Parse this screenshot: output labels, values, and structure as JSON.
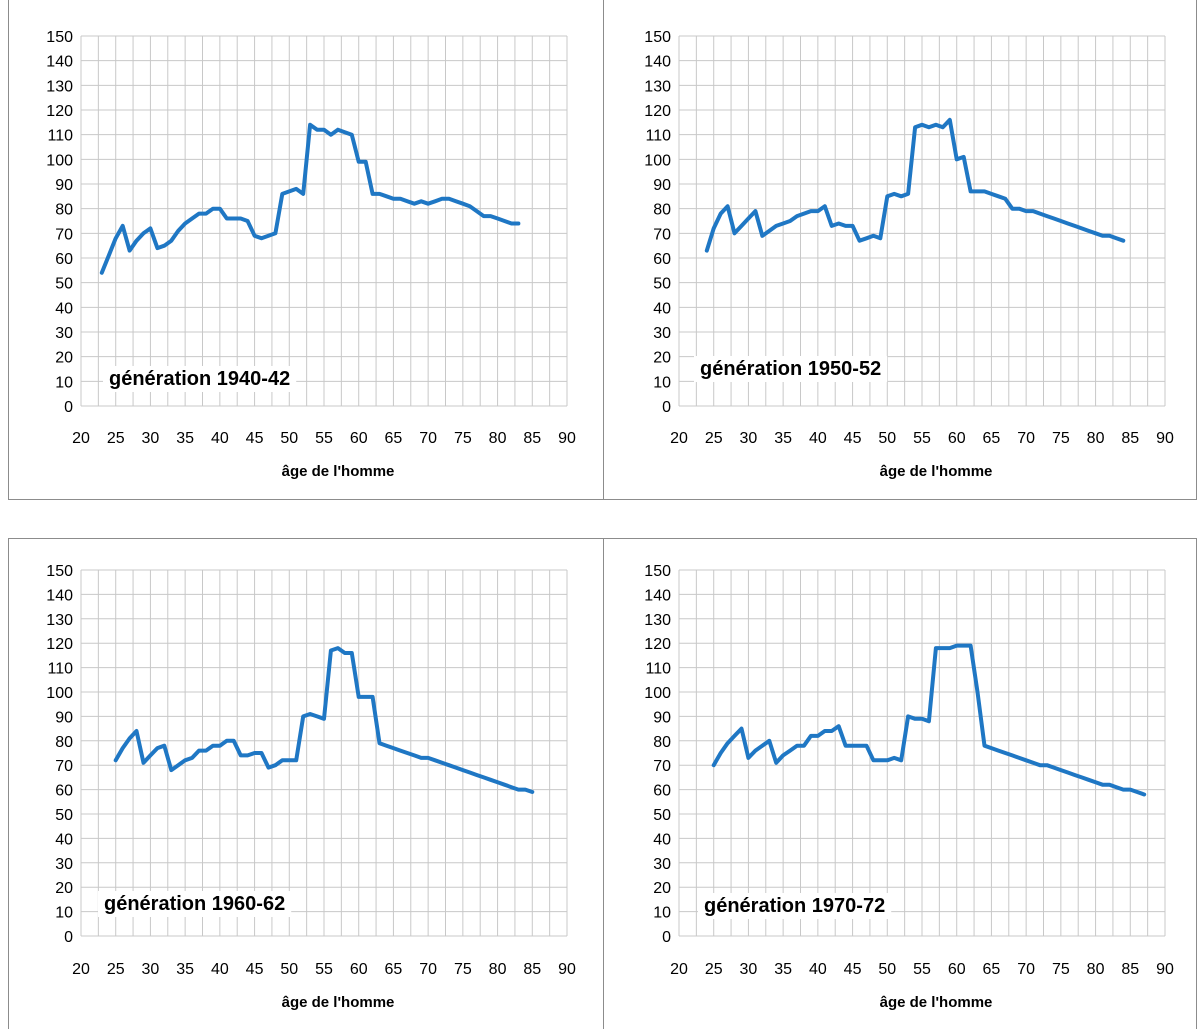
{
  "chart_data": [
    {
      "type": "line",
      "title": "",
      "annotation": "génération 1940-42",
      "xlabel": "âge de l'homme",
      "ylabel": "",
      "xlim": [
        20,
        90
      ],
      "ylim": [
        0,
        150
      ],
      "xticks": [
        "20",
        "25",
        "30",
        "35",
        "40",
        "45",
        "50",
        "55",
        "60",
        "65",
        "70",
        "75",
        "80",
        "85",
        "90"
      ],
      "yticks": [
        "0",
        "10",
        "20",
        "30",
        "40",
        "50",
        "60",
        "70",
        "80",
        "90",
        "100",
        "110",
        "120",
        "130",
        "140",
        "150"
      ],
      "grid": true,
      "color": "#1f77c4",
      "x": [
        23,
        24,
        25,
        26,
        27,
        28,
        29,
        30,
        31,
        32,
        33,
        34,
        35,
        36,
        37,
        38,
        39,
        40,
        41,
        42,
        43,
        44,
        45,
        46,
        47,
        48,
        49,
        50,
        51,
        52,
        53,
        54,
        55,
        56,
        57,
        58,
        59,
        60,
        61,
        62,
        63,
        64,
        65,
        66,
        67,
        68,
        69,
        70,
        71,
        72,
        73,
        74,
        75,
        76,
        77,
        78,
        79,
        80,
        81,
        82,
        83
      ],
      "y": [
        54,
        61,
        68,
        73,
        63,
        67,
        70,
        72,
        64,
        65,
        67,
        71,
        74,
        76,
        78,
        78,
        80,
        80,
        76,
        76,
        76,
        75,
        69,
        68,
        69,
        70,
        86,
        87,
        88,
        86,
        114,
        112,
        112,
        110,
        112,
        111,
        110,
        99,
        99,
        86,
        86,
        85,
        84,
        84,
        83,
        82,
        83,
        82,
        83,
        84,
        84,
        83,
        82,
        81,
        79,
        77,
        77,
        76,
        75,
        74,
        74
      ]
    },
    {
      "type": "line",
      "title": "",
      "annotation": "génération 1950-52",
      "xlabel": "âge de l'homme",
      "ylabel": "",
      "xlim": [
        20,
        90
      ],
      "ylim": [
        0,
        150
      ],
      "xticks": [
        "20",
        "25",
        "30",
        "35",
        "40",
        "45",
        "50",
        "55",
        "60",
        "65",
        "70",
        "75",
        "80",
        "85",
        "90"
      ],
      "yticks": [
        "0",
        "10",
        "20",
        "30",
        "40",
        "50",
        "60",
        "70",
        "80",
        "90",
        "100",
        "110",
        "120",
        "130",
        "140",
        "150"
      ],
      "grid": true,
      "color": "#1f77c4",
      "x": [
        24,
        25,
        26,
        27,
        28,
        29,
        30,
        31,
        32,
        33,
        34,
        35,
        36,
        37,
        38,
        39,
        40,
        41,
        42,
        43,
        44,
        45,
        46,
        47,
        48,
        49,
        50,
        51,
        52,
        53,
        54,
        55,
        56,
        57,
        58,
        59,
        60,
        61,
        62,
        63,
        64,
        65,
        66,
        67,
        68,
        69,
        70,
        71,
        72,
        73,
        74,
        75,
        76,
        77,
        78,
        79,
        80,
        81,
        82,
        83,
        84
      ],
      "y": [
        63,
        72,
        78,
        81,
        70,
        73,
        76,
        79,
        69,
        71,
        73,
        74,
        75,
        77,
        78,
        79,
        79,
        81,
        73,
        74,
        73,
        73,
        67,
        68,
        69,
        68,
        85,
        86,
        85,
        86,
        113,
        114,
        113,
        114,
        113,
        116,
        100,
        101,
        87,
        87,
        87,
        86,
        85,
        84,
        80,
        80,
        79,
        79,
        78,
        77,
        76,
        75,
        74,
        73,
        72,
        71,
        70,
        69,
        69,
        68,
        67
      ]
    },
    {
      "type": "line",
      "title": "",
      "annotation": "génération 1960-62",
      "xlabel": "âge de l'homme",
      "ylabel": "",
      "xlim": [
        20,
        90
      ],
      "ylim": [
        0,
        150
      ],
      "xticks": [
        "20",
        "25",
        "30",
        "35",
        "40",
        "45",
        "50",
        "55",
        "60",
        "65",
        "70",
        "75",
        "80",
        "85",
        "90"
      ],
      "yticks": [
        "0",
        "10",
        "20",
        "30",
        "40",
        "50",
        "60",
        "70",
        "80",
        "90",
        "100",
        "110",
        "120",
        "130",
        "140",
        "150"
      ],
      "grid": true,
      "color": "#1f77c4",
      "x": [
        25,
        26,
        27,
        28,
        29,
        30,
        31,
        32,
        33,
        34,
        35,
        36,
        37,
        38,
        39,
        40,
        41,
        42,
        43,
        44,
        45,
        46,
        47,
        48,
        49,
        50,
        51,
        52,
        53,
        54,
        55,
        56,
        57,
        58,
        59,
        60,
        61,
        62,
        63,
        64,
        65,
        66,
        67,
        68,
        69,
        70,
        71,
        72,
        73,
        74,
        75,
        76,
        77,
        78,
        79,
        80,
        81,
        82,
        83,
        84,
        85
      ],
      "y": [
        72,
        77,
        81,
        84,
        71,
        74,
        77,
        78,
        68,
        70,
        72,
        73,
        76,
        76,
        78,
        78,
        80,
        80,
        74,
        74,
        75,
        75,
        69,
        70,
        72,
        72,
        72,
        90,
        91,
        90,
        89,
        117,
        118,
        116,
        116,
        98,
        98,
        98,
        79,
        78,
        77,
        76,
        75,
        74,
        73,
        73,
        72,
        71,
        70,
        69,
        68,
        67,
        66,
        65,
        64,
        63,
        62,
        61,
        60,
        60,
        59
      ]
    },
    {
      "type": "line",
      "title": "",
      "annotation": "génération 1970-72",
      "xlabel": "âge de l'homme",
      "ylabel": "",
      "xlim": [
        20,
        90
      ],
      "ylim": [
        0,
        150
      ],
      "xticks": [
        "20",
        "25",
        "30",
        "35",
        "40",
        "45",
        "50",
        "55",
        "60",
        "65",
        "70",
        "75",
        "80",
        "85",
        "90"
      ],
      "yticks": [
        "0",
        "10",
        "20",
        "30",
        "40",
        "50",
        "60",
        "70",
        "80",
        "90",
        "100",
        "110",
        "120",
        "130",
        "140",
        "150"
      ],
      "grid": true,
      "color": "#1f77c4",
      "x": [
        25,
        26,
        27,
        28,
        29,
        30,
        31,
        32,
        33,
        34,
        35,
        36,
        37,
        38,
        39,
        40,
        41,
        42,
        43,
        44,
        45,
        46,
        47,
        48,
        49,
        50,
        51,
        52,
        53,
        54,
        55,
        56,
        57,
        58,
        59,
        60,
        61,
        62,
        63,
        64,
        65,
        66,
        67,
        68,
        69,
        70,
        71,
        72,
        73,
        74,
        75,
        76,
        77,
        78,
        79,
        80,
        81,
        82,
        83,
        84,
        85,
        86,
        87
      ],
      "y": [
        70,
        75,
        79,
        82,
        85,
        73,
        76,
        78,
        80,
        71,
        74,
        76,
        78,
        78,
        82,
        82,
        84,
        84,
        86,
        78,
        78,
        78,
        78,
        72,
        72,
        72,
        73,
        72,
        90,
        89,
        89,
        88,
        118,
        118,
        118,
        119,
        119,
        119,
        100,
        78,
        77,
        76,
        75,
        74,
        73,
        72,
        71,
        70,
        70,
        69,
        68,
        67,
        66,
        65,
        64,
        63,
        62,
        62,
        61,
        60,
        60,
        59,
        58
      ]
    }
  ]
}
